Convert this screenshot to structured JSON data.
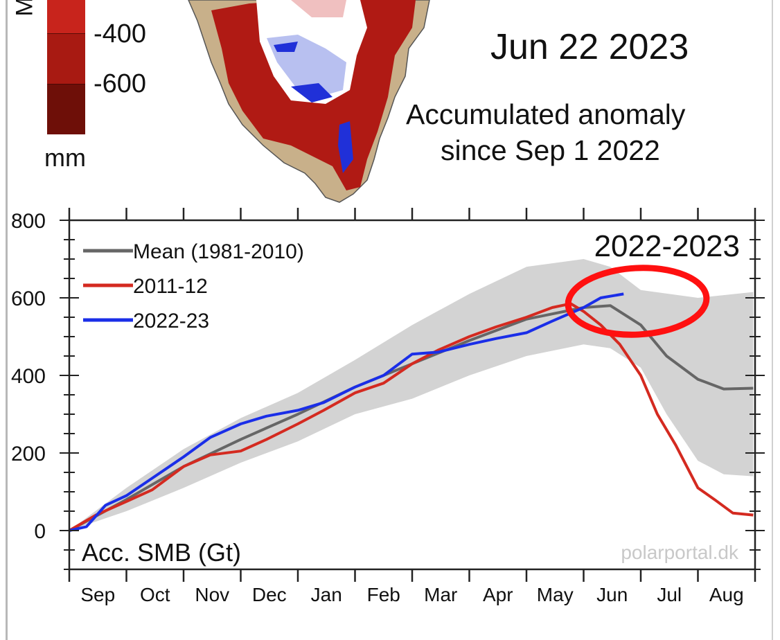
{
  "map_panel": {
    "colorbar": {
      "cut_label": "M",
      "labels": [
        "-400",
        "-600"
      ],
      "unit": "mm",
      "colors": [
        "#c8241c",
        "#a81a12",
        "#6e0f08"
      ]
    },
    "date": "Jun 22 2023",
    "caption_line1": "Accumulated anomaly",
    "caption_line2": "since Sep 1 2022",
    "colors": {
      "land": "#c8b08a",
      "strong_neg": "#b01a14",
      "neg": "#d84a44",
      "light_neg": "#f0c0c0",
      "pos": "#2030d8",
      "light_pos": "#b8c0f0"
    }
  },
  "chart_data": {
    "type": "line",
    "title": "2022-2023",
    "ylabel": "Acc. SMB (Gt)",
    "watermark": "polarportal.dk",
    "ylim": [
      -100,
      800
    ],
    "yticks": [
      "0",
      "200",
      "400",
      "600",
      "800"
    ],
    "xticks": [
      "Sep",
      "Oct",
      "Nov",
      "Dec",
      "Jan",
      "Feb",
      "Mar",
      "Apr",
      "May",
      "Jun",
      "Jul",
      "Aug"
    ],
    "xlim": [
      "Sep 1",
      "Aug 31"
    ],
    "grid": false,
    "legend": "top-left",
    "band": {
      "color": "#d3d3d3",
      "upper": [
        [
          "Sep 1",
          0
        ],
        [
          "Oct 1",
          110
        ],
        [
          "Nov 1",
          210
        ],
        [
          "Dec 1",
          290
        ],
        [
          "Jan 1",
          355
        ],
        [
          "Feb 1",
          440
        ],
        [
          "Mar 1",
          530
        ],
        [
          "Apr 1",
          610
        ],
        [
          "May 1",
          680
        ],
        [
          "Jun 1",
          700
        ],
        [
          "Jun 15",
          680
        ],
        [
          "Jul 1",
          620
        ],
        [
          "Aug 1",
          600
        ],
        [
          "Aug 31",
          615
        ]
      ],
      "lower": [
        [
          "Sep 1",
          0
        ],
        [
          "Oct 1",
          50
        ],
        [
          "Nov 1",
          110
        ],
        [
          "Dec 1",
          175
        ],
        [
          "Jan 1",
          230
        ],
        [
          "Feb 1",
          300
        ],
        [
          "Mar 1",
          340
        ],
        [
          "Apr 1",
          400
        ],
        [
          "May 1",
          450
        ],
        [
          "Jun 1",
          480
        ],
        [
          "Jun 15",
          470
        ],
        [
          "Jul 1",
          420
        ],
        [
          "Jul 15",
          300
        ],
        [
          "Aug 1",
          180
        ],
        [
          "Aug 15",
          145
        ],
        [
          "Aug 31",
          140
        ]
      ]
    },
    "series": [
      {
        "name": "Mean (1981-2010)",
        "color": "#666666",
        "points": [
          [
            "Sep 1",
            0
          ],
          [
            "Oct 1",
            80
          ],
          [
            "Nov 1",
            165
          ],
          [
            "Dec 1",
            235
          ],
          [
            "Jan 1",
            300
          ],
          [
            "Feb 1",
            370
          ],
          [
            "Mar 1",
            430
          ],
          [
            "Apr 1",
            490
          ],
          [
            "May 1",
            545
          ],
          [
            "Jun 1",
            575
          ],
          [
            "Jun 15",
            580
          ],
          [
            "Jul 1",
            530
          ],
          [
            "Jul 15",
            450
          ],
          [
            "Aug 1",
            390
          ],
          [
            "Aug 15",
            365
          ],
          [
            "Aug 31",
            367
          ]
        ]
      },
      {
        "name": "2011-12",
        "color": "#d42a20",
        "points": [
          [
            "Sep 1",
            0
          ],
          [
            "Sep 15",
            40
          ],
          [
            "Oct 1",
            75
          ],
          [
            "Oct 15",
            105
          ],
          [
            "Nov 1",
            165
          ],
          [
            "Nov 15",
            195
          ],
          [
            "Dec 1",
            205
          ],
          [
            "Dec 15",
            235
          ],
          [
            "Jan 1",
            275
          ],
          [
            "Jan 15",
            310
          ],
          [
            "Feb 1",
            355
          ],
          [
            "Feb 15",
            380
          ],
          [
            "Mar 1",
            430
          ],
          [
            "Mar 15",
            465
          ],
          [
            "Apr 1",
            500
          ],
          [
            "Apr 15",
            525
          ],
          [
            "May 1",
            550
          ],
          [
            "May 15",
            575
          ],
          [
            "May 25",
            585
          ],
          [
            "Jun 1",
            565
          ],
          [
            "Jun 10",
            530
          ],
          [
            "Jun 20",
            480
          ],
          [
            "Jul 1",
            400
          ],
          [
            "Jul 10",
            300
          ],
          [
            "Jul 20",
            220
          ],
          [
            "Aug 1",
            110
          ],
          [
            "Aug 10",
            80
          ],
          [
            "Aug 20",
            45
          ],
          [
            "Aug 31",
            40
          ]
        ]
      },
      {
        "name": "2022-23",
        "color": "#1a2ee8",
        "points": [
          [
            "Sep 1",
            0
          ],
          [
            "Sep 10",
            10
          ],
          [
            "Sep 20",
            65
          ],
          [
            "Oct 1",
            90
          ],
          [
            "Oct 15",
            135
          ],
          [
            "Nov 1",
            190
          ],
          [
            "Nov 15",
            240
          ],
          [
            "Dec 1",
            275
          ],
          [
            "Dec 15",
            295
          ],
          [
            "Jan 1",
            310
          ],
          [
            "Jan 15",
            330
          ],
          [
            "Feb 1",
            370
          ],
          [
            "Feb 15",
            400
          ],
          [
            "Mar 1",
            455
          ],
          [
            "Mar 15",
            460
          ],
          [
            "Apr 1",
            480
          ],
          [
            "Apr 15",
            495
          ],
          [
            "May 1",
            510
          ],
          [
            "May 15",
            540
          ],
          [
            "Jun 1",
            575
          ],
          [
            "Jun 10",
            600
          ],
          [
            "Jun 22",
            610
          ]
        ]
      }
    ],
    "annotation": {
      "type": "hand-drawn circle",
      "color": "#ff1010",
      "around": [
        "May 25",
        "Jul 20"
      ]
    }
  }
}
